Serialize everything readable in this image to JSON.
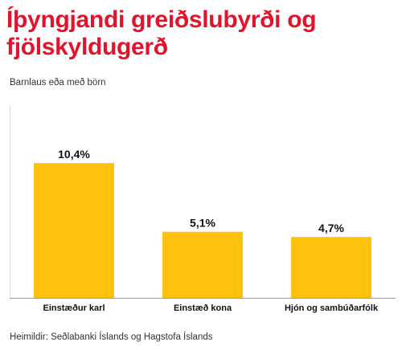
{
  "chart_data": {
    "type": "bar",
    "title_lines": [
      "Íþyngjandi greiðslubyrði og",
      "fjölskyldugerð"
    ],
    "subtitle": "Barnlaus eða með börn",
    "categories": [
      "Einstæður karl",
      "Einstæð kona",
      "Hjón og sambúðarfólk"
    ],
    "values": [
      10.4,
      5.1,
      4.7
    ],
    "value_labels": [
      "10,4%",
      "5,1%",
      "4,7%"
    ],
    "ylim": [
      0,
      15
    ],
    "grid": false,
    "bar_color": "#ffc20e",
    "title_color": "#e0142c",
    "source": "Heimildir: Seðlabanki Íslands og Hagstofa Íslands"
  }
}
